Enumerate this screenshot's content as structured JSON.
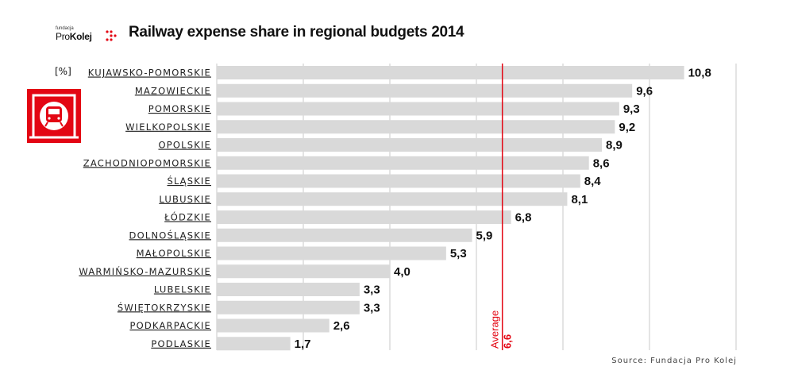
{
  "header": {
    "logo_small": "fundacja",
    "logo_pro": "Pro",
    "logo_kolej": "Kolej",
    "title": "Railway expense share in regional budgets 2014"
  },
  "unit_label": "[%]",
  "source": "Source: Fundacja Pro Kolej",
  "icons": {
    "logo_mark": "dots-arrow-icon",
    "train_sign": "train-sign-icon"
  },
  "colors": {
    "bar": "#d9d9d9",
    "average": "#e30613",
    "grid": "#c8c8c8",
    "accent": "#e30613"
  },
  "chart_data": {
    "type": "bar",
    "orientation": "horizontal",
    "categories": [
      "KUJAWSKO-POMORSKIE",
      "MAZOWIECKIE",
      "POMORSKIE",
      "WIELKOPOLSKIE",
      "OPOLSKIE",
      "ZACHODNIOPOMORSKIE",
      "ŚLĄSKIE",
      "LUBUSKIE",
      "ŁÓDZKIE",
      "DOLNOŚLĄSKIE",
      "MAŁOPOLSKIE",
      "WARMIŃSKO-MAZURSKIE",
      "LUBELSKIE",
      "ŚWIĘTOKRZYSKIE",
      "PODKARPACKIE",
      "PODLASKIE"
    ],
    "values": [
      10.8,
      9.6,
      9.3,
      9.2,
      8.9,
      8.6,
      8.4,
      8.1,
      6.8,
      5.9,
      5.3,
      4.0,
      3.3,
      3.3,
      2.6,
      1.7
    ],
    "value_labels": [
      "10,8",
      "9,6",
      "9,3",
      "9,2",
      "8,9",
      "8,6",
      "8,4",
      "8,1",
      "6,8",
      "5,9",
      "5,3",
      "4,0",
      "3,3",
      "3,3",
      "2,6",
      "1,7"
    ],
    "average": {
      "label": "Average",
      "value": 6.6,
      "value_label": "6,6"
    },
    "xlim": [
      0,
      12
    ],
    "grid": true,
    "legend": "none"
  }
}
